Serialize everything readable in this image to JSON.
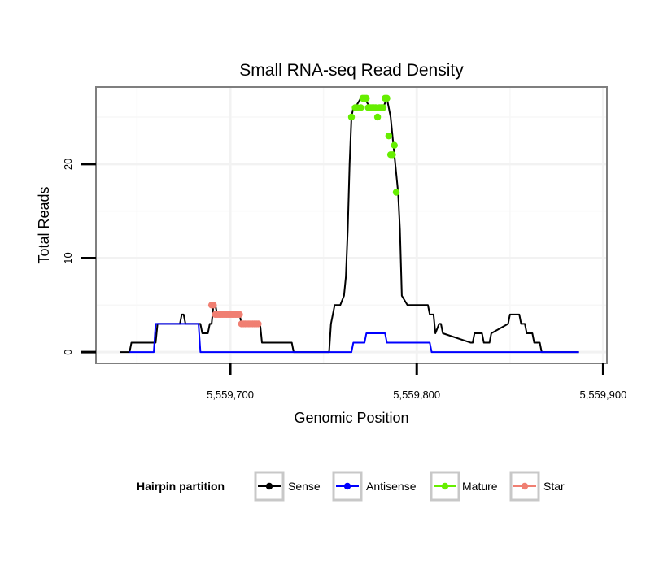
{
  "chart_data": {
    "type": "line",
    "title": "Small RNA-seq Read Density",
    "xlabel": "Genomic Position",
    "ylabel": "Total Reads",
    "xlim": [
      5559628,
      5559902
    ],
    "ylim": [
      -1.2,
      28.2
    ],
    "x_ticks": [
      5559700,
      5559800,
      5559900
    ],
    "x_tick_labels": [
      "5,559,700",
      "5,559,800",
      "5,559,900"
    ],
    "y_ticks": [
      0,
      10,
      20
    ],
    "y_tick_labels": [
      "0",
      "10",
      "20"
    ],
    "grid": true,
    "legend": {
      "title": "Hairpin partition",
      "position": "bottom",
      "entries": [
        {
          "name": "Sense",
          "color": "#000000"
        },
        {
          "name": "Antisense",
          "color": "#0000ff"
        },
        {
          "name": "Mature",
          "color": "#66ee00"
        },
        {
          "name": "Star",
          "color": "#f07f72"
        }
      ]
    },
    "series": [
      {
        "name": "Sense",
        "color": "#000000",
        "x": [
          5559641,
          5559646,
          5559647,
          5559660,
          5559661,
          5559673,
          5559674,
          5559675,
          5559676,
          5559684,
          5559685,
          5559688,
          5559689,
          5559690,
          5559691,
          5559692,
          5559693,
          5559694,
          5559700,
          5559705,
          5559706,
          5559707,
          5559712,
          5559716,
          5559717,
          5559733,
          5559734,
          5559753,
          5559754,
          5559755,
          5559756,
          5559757,
          5559759,
          5559761,
          5559762,
          5559763,
          5559764,
          5559765,
          5559766,
          5559767,
          5559770,
          5559772,
          5559775,
          5559778,
          5559782,
          5559784,
          5559786,
          5559788,
          5559790,
          5559791,
          5559792,
          5559795,
          5559800,
          5559806,
          5559807,
          5559809,
          5559810,
          5559812,
          5559813,
          5559814,
          5559829,
          5559830,
          5559831,
          5559835,
          5559836,
          5559839,
          5559840,
          5559849,
          5559850,
          5559855,
          5559856,
          5559858,
          5559859,
          5559862,
          5559863,
          5559866,
          5559867,
          5559887
        ],
        "y": [
          0,
          0,
          1,
          1,
          3,
          3,
          4,
          4,
          3,
          3,
          2,
          2,
          3,
          3,
          5,
          5,
          4,
          4,
          4,
          4,
          3,
          3,
          3,
          3,
          1,
          1,
          0,
          0,
          3,
          4,
          5,
          5,
          5,
          6,
          8,
          13,
          20,
          25,
          26,
          26,
          27,
          27,
          26,
          26,
          26,
          27,
          25,
          21,
          17,
          13,
          6,
          5,
          5,
          5,
          4,
          4,
          2,
          3,
          3,
          2,
          1,
          1,
          2,
          2,
          1,
          1,
          2,
          3,
          4,
          4,
          3,
          3,
          2,
          2,
          1,
          1,
          0,
          0
        ]
      },
      {
        "name": "Antisense",
        "color": "#0000ff",
        "x": [
          5559646,
          5559659,
          5559660,
          5559683,
          5559684,
          5559765,
          5559766,
          5559772,
          5559773,
          5559783,
          5559784,
          5559807,
          5559808,
          5559887
        ],
        "y": [
          0,
          0,
          3,
          3,
          0,
          0,
          1,
          1,
          2,
          2,
          1,
          1,
          0,
          0
        ]
      },
      {
        "name": "Mature",
        "color": "#66ee00",
        "points": [
          [
            5559765,
            25
          ],
          [
            5559767,
            26
          ],
          [
            5559768,
            26
          ],
          [
            5559770,
            26
          ],
          [
            5559771,
            27
          ],
          [
            5559772,
            27
          ],
          [
            5559773,
            27
          ],
          [
            5559774,
            26
          ],
          [
            5559775,
            26
          ],
          [
            5559776,
            26
          ],
          [
            5559777,
            26
          ],
          [
            5559778,
            26
          ],
          [
            5559779,
            25
          ],
          [
            5559780,
            26
          ],
          [
            5559781,
            26
          ],
          [
            5559782,
            26
          ],
          [
            5559783,
            27
          ],
          [
            5559784,
            27
          ],
          [
            5559785,
            23
          ],
          [
            5559786,
            21
          ],
          [
            5559787,
            21
          ],
          [
            5559788,
            22
          ],
          [
            5559789,
            17
          ]
        ]
      },
      {
        "name": "Star",
        "color": "#f07f72",
        "points": [
          [
            5559690,
            5
          ],
          [
            5559691,
            5
          ],
          [
            5559692,
            4
          ],
          [
            5559693,
            4
          ],
          [
            5559694,
            4
          ],
          [
            5559695,
            4
          ],
          [
            5559696,
            4
          ],
          [
            5559697,
            4
          ],
          [
            5559698,
            4
          ],
          [
            5559699,
            4
          ],
          [
            5559700,
            4
          ],
          [
            5559701,
            4
          ],
          [
            5559702,
            4
          ],
          [
            5559703,
            4
          ],
          [
            5559704,
            4
          ],
          [
            5559705,
            4
          ],
          [
            5559706,
            3
          ],
          [
            5559707,
            3
          ],
          [
            5559708,
            3
          ],
          [
            5559709,
            3
          ],
          [
            5559710,
            3
          ],
          [
            5559711,
            3
          ],
          [
            5559712,
            3
          ],
          [
            5559713,
            3
          ],
          [
            5559714,
            3
          ],
          [
            5559715,
            3
          ]
        ]
      }
    ]
  }
}
